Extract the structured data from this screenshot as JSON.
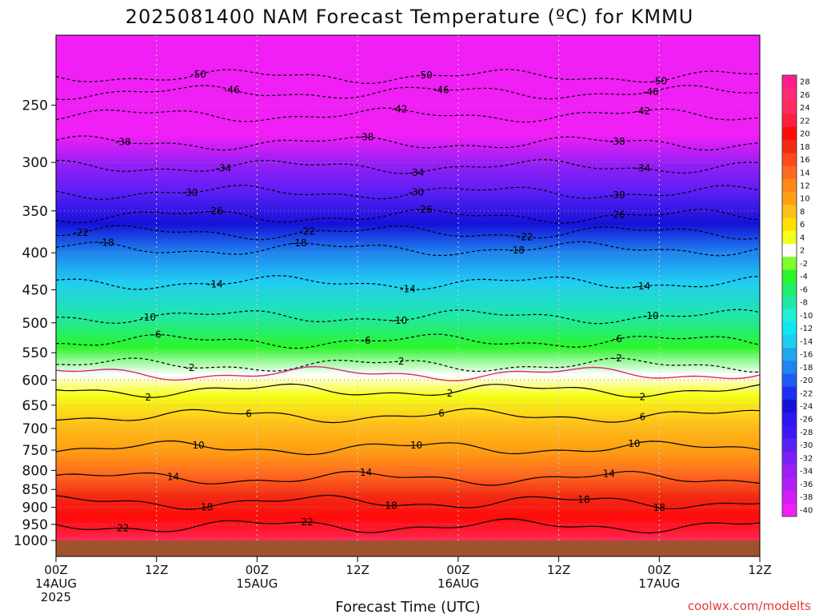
{
  "title": "2025081400 NAM Forecast Temperature (ºC) for KMMU",
  "x_axis_label": "Forecast Time (UTC)",
  "credit": "coolwx.com/modelts",
  "chart_data": {
    "type": "heatmap",
    "variable": "temperature",
    "units": "ºC",
    "y_axis": "pressure (hPa)",
    "y_inverted": true,
    "y_log_scale": true,
    "y_ticks": [
      250,
      300,
      350,
      400,
      450,
      500,
      550,
      600,
      650,
      700,
      750,
      800,
      850,
      900,
      950,
      1000
    ],
    "y_range": [
      200,
      1050
    ],
    "x_ticks": [
      {
        "hour": 0,
        "label": "00Z",
        "sub": "14AUG",
        "sub2": "2025"
      },
      {
        "hour": 12,
        "label": "12Z",
        "sub": "",
        "sub2": ""
      },
      {
        "hour": 24,
        "label": "00Z",
        "sub": "15AUG",
        "sub2": ""
      },
      {
        "hour": 36,
        "label": "12Z",
        "sub": "",
        "sub2": ""
      },
      {
        "hour": 48,
        "label": "00Z",
        "sub": "16AUG",
        "sub2": ""
      },
      {
        "hour": 60,
        "label": "12Z",
        "sub": "",
        "sub2": ""
      },
      {
        "hour": 72,
        "label": "00Z",
        "sub": "17AUG",
        "sub2": ""
      },
      {
        "hour": 84,
        "label": "12Z",
        "sub": "",
        "sub2": ""
      }
    ],
    "x_range": [
      0,
      84
    ],
    "surface_pressure": 1000,
    "temperature_profile": [
      {
        "p": 210,
        "t": -52
      },
      {
        "p": 230,
        "t": -48
      },
      {
        "p": 250,
        "t": -44
      },
      {
        "p": 275,
        "t": -40
      },
      {
        "p": 300,
        "t": -35
      },
      {
        "p": 330,
        "t": -30
      },
      {
        "p": 365,
        "t": -24
      },
      {
        "p": 400,
        "t": -19
      },
      {
        "p": 440,
        "t": -14
      },
      {
        "p": 490,
        "t": -9
      },
      {
        "p": 540,
        "t": -5
      },
      {
        "p": 590,
        "t": 0
      },
      {
        "p": 630,
        "t": 3
      },
      {
        "p": 690,
        "t": 7
      },
      {
        "p": 750,
        "t": 10
      },
      {
        "p": 810,
        "t": 14
      },
      {
        "p": 870,
        "t": 17
      },
      {
        "p": 930,
        "t": 20
      },
      {
        "p": 980,
        "t": 22
      },
      {
        "p": 1000,
        "t": 24
      }
    ],
    "contours": [
      {
        "value": -50,
        "style": "dashed",
        "base_p": 228,
        "labels": [
          {
            "hour": 17,
            "text": "-50"
          },
          {
            "hour": 44,
            "text": "-50"
          },
          {
            "hour": 72,
            "text": "-50"
          }
        ]
      },
      {
        "value": -46,
        "style": "dashed",
        "base_p": 240,
        "labels": [
          {
            "hour": 21,
            "text": "-46"
          },
          {
            "hour": 46,
            "text": "-46"
          },
          {
            "hour": 71,
            "text": "-46"
          }
        ]
      },
      {
        "value": -42,
        "style": "dashed",
        "base_p": 258,
        "labels": [
          {
            "hour": 41,
            "text": "-42"
          },
          {
            "hour": 70,
            "text": "-42"
          }
        ]
      },
      {
        "value": -38,
        "style": "dashed",
        "base_p": 282,
        "labels": [
          {
            "hour": 8,
            "text": "-38"
          },
          {
            "hour": 37,
            "text": "-38"
          },
          {
            "hour": 67,
            "text": "-38"
          }
        ]
      },
      {
        "value": -34,
        "style": "dashed",
        "base_p": 304,
        "labels": [
          {
            "hour": 20,
            "text": "-34"
          },
          {
            "hour": 43,
            "text": "-34"
          },
          {
            "hour": 70,
            "text": "-34"
          }
        ]
      },
      {
        "value": -30,
        "style": "dashed",
        "base_p": 330,
        "labels": [
          {
            "hour": 16,
            "text": "-30"
          },
          {
            "hour": 43,
            "text": "-30"
          },
          {
            "hour": 67,
            "text": "-30"
          }
        ]
      },
      {
        "value": -26,
        "style": "dashed",
        "base_p": 356,
        "labels": [
          {
            "hour": 19,
            "text": "-26"
          },
          {
            "hour": 44,
            "text": "-26"
          },
          {
            "hour": 67,
            "text": "-26"
          }
        ]
      },
      {
        "value": -22,
        "style": "dashed",
        "base_p": 375,
        "labels": [
          {
            "hour": 3,
            "text": "-22"
          },
          {
            "hour": 30,
            "text": "-22"
          },
          {
            "hour": 56,
            "text": "-22"
          }
        ]
      },
      {
        "value": -18,
        "style": "dashed",
        "base_p": 395,
        "labels": [
          {
            "hour": 6,
            "text": "-18"
          },
          {
            "hour": 29,
            "text": "-18"
          },
          {
            "hour": 55,
            "text": "-18"
          }
        ]
      },
      {
        "value": -14,
        "style": "dashed",
        "base_p": 440,
        "labels": [
          {
            "hour": 19,
            "text": "-14"
          },
          {
            "hour": 42,
            "text": "-14"
          },
          {
            "hour": 70,
            "text": "-14"
          }
        ]
      },
      {
        "value": -10,
        "style": "dashed",
        "base_p": 490,
        "labels": [
          {
            "hour": 11,
            "text": "-10"
          },
          {
            "hour": 41,
            "text": "-10"
          },
          {
            "hour": 71,
            "text": "-10"
          }
        ]
      },
      {
        "value": -6,
        "style": "dashed",
        "base_p": 530,
        "labels": [
          {
            "hour": 12,
            "text": "-6"
          },
          {
            "hour": 37,
            "text": "-6"
          },
          {
            "hour": 67,
            "text": "-6"
          }
        ]
      },
      {
        "value": -2,
        "style": "dashed",
        "base_p": 572,
        "labels": [
          {
            "hour": 16,
            "text": "-2"
          },
          {
            "hour": 41,
            "text": "-2"
          },
          {
            "hour": 67,
            "text": "-2"
          }
        ]
      },
      {
        "value": 0,
        "style": "magenta",
        "base_p": 588,
        "labels": []
      },
      {
        "value": 2,
        "style": "solid",
        "base_p": 620,
        "labels": [
          {
            "hour": 11,
            "text": "2"
          },
          {
            "hour": 47,
            "text": "2"
          },
          {
            "hour": 70,
            "text": "2"
          }
        ]
      },
      {
        "value": 6,
        "style": "solid",
        "base_p": 672,
        "labels": [
          {
            "hour": 23,
            "text": "6"
          },
          {
            "hour": 46,
            "text": "6"
          },
          {
            "hour": 70,
            "text": "6"
          }
        ]
      },
      {
        "value": 10,
        "style": "solid",
        "base_p": 745,
        "labels": [
          {
            "hour": 17,
            "text": "10"
          },
          {
            "hour": 43,
            "text": "10"
          },
          {
            "hour": 69,
            "text": "10"
          }
        ]
      },
      {
        "value": 14,
        "style": "solid",
        "base_p": 820,
        "labels": [
          {
            "hour": 14,
            "text": "14"
          },
          {
            "hour": 37,
            "text": "14"
          },
          {
            "hour": 66,
            "text": "14"
          }
        ]
      },
      {
        "value": 18,
        "style": "solid",
        "base_p": 885,
        "labels": [
          {
            "hour": 18,
            "text": "18"
          },
          {
            "hour": 40,
            "text": "18"
          },
          {
            "hour": 63,
            "text": "18"
          },
          {
            "hour": 72,
            "text": "18"
          }
        ]
      },
      {
        "value": 22,
        "style": "solid",
        "base_p": 955,
        "labels": [
          {
            "hour": 8,
            "text": "22"
          },
          {
            "hour": 30,
            "text": "22"
          }
        ]
      }
    ],
    "colorbar": [
      {
        "label": "28",
        "color": "#ff1c8e"
      },
      {
        "label": "26",
        "color": "#ff2b77"
      },
      {
        "label": "24",
        "color": "#ff2b60"
      },
      {
        "label": "22",
        "color": "#ff1e3c"
      },
      {
        "label": "20",
        "color": "#ff0b0b"
      },
      {
        "label": "18",
        "color": "#f22a12"
      },
      {
        "label": "16",
        "color": "#ff4a1a"
      },
      {
        "label": "14",
        "color": "#ff6a1f"
      },
      {
        "label": "12",
        "color": "#ff8a18"
      },
      {
        "label": "10",
        "color": "#ff9f12"
      },
      {
        "label": "8",
        "color": "#ffbf1a"
      },
      {
        "label": "6",
        "color": "#ffe000"
      },
      {
        "label": "4",
        "color": "#f5ff1a"
      },
      {
        "label": "2",
        "color": "#ffffff"
      },
      {
        "label": "-2",
        "color": "#7cff2a"
      },
      {
        "label": "-4",
        "color": "#2bf52b"
      },
      {
        "label": "-6",
        "color": "#1ff06b"
      },
      {
        "label": "-8",
        "color": "#1fe8a6"
      },
      {
        "label": "-10",
        "color": "#1ff0d8"
      },
      {
        "label": "-12",
        "color": "#12e6f5"
      },
      {
        "label": "-14",
        "color": "#20cdf2"
      },
      {
        "label": "-16",
        "color": "#1ea8ef"
      },
      {
        "label": "-18",
        "color": "#1f84ef"
      },
      {
        "label": "-20",
        "color": "#1e5cf0"
      },
      {
        "label": "-22",
        "color": "#1e2ef2"
      },
      {
        "label": "-24",
        "color": "#1412d8"
      },
      {
        "label": "-26",
        "color": "#2a16f0"
      },
      {
        "label": "-28",
        "color": "#3d18f5"
      },
      {
        "label": "-30",
        "color": "#5a1ff5"
      },
      {
        "label": "-32",
        "color": "#7a1ff5"
      },
      {
        "label": "-34",
        "color": "#991ff5"
      },
      {
        "label": "-36",
        "color": "#b21ff5"
      },
      {
        "label": "-38",
        "color": "#cf1ff5"
      },
      {
        "label": "-40",
        "color": "#f01ff5"
      }
    ],
    "colors": {
      "ground": "#a0522d",
      "freezing_line": "#e0208a",
      "contour": "#000000",
      "grid": "#9a9a9a"
    }
  }
}
